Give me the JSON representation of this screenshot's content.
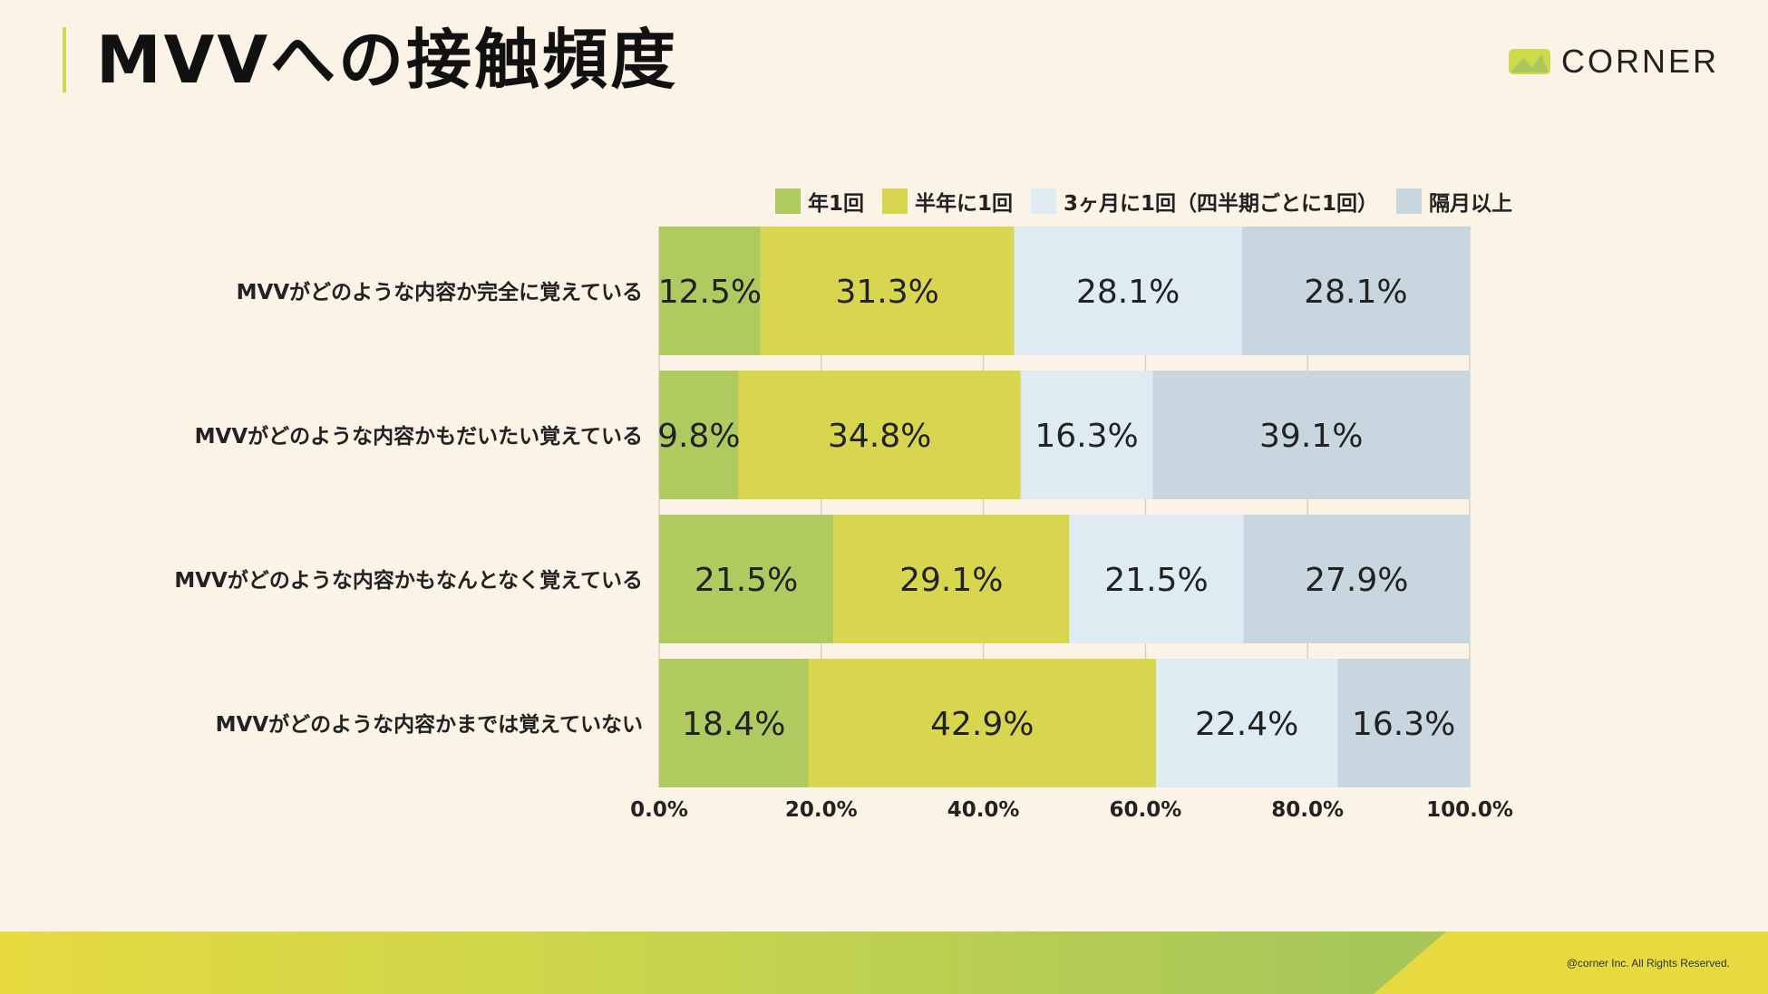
{
  "page": {
    "title": "MVVへの接触頻度",
    "logo_text": "CORNER",
    "copyright": "@corner Inc. All Rights Reserved."
  },
  "chart_data": {
    "type": "bar",
    "orientation": "horizontal",
    "stacked": true,
    "categories": [
      "MVVがどのような内容か完全に覚えている",
      "MVVがどのような内容かもだいたい覚えている",
      "MVVがどのような内容かもなんとなく覚えている",
      "MVVがどのような内容かまでは覚えていない"
    ],
    "series": [
      {
        "name": "年1回",
        "color": "#afcb5f",
        "values": [
          12.5,
          9.8,
          21.5,
          18.4
        ],
        "labels": [
          "12.5%",
          "9.8%",
          "21.5%",
          "18.4%"
        ]
      },
      {
        "name": "半年に1回",
        "color": "#d8d54f",
        "values": [
          31.3,
          34.8,
          29.1,
          42.9
        ],
        "labels": [
          "31.3%",
          "34.8%",
          "29.1%",
          "42.9%"
        ]
      },
      {
        "name": "3ヶ月に1回（四半期ごとに1回）",
        "color": "#deebf3",
        "values": [
          28.1,
          16.3,
          21.5,
          22.4
        ],
        "labels": [
          "28.1%",
          "16.3%",
          "21.5%",
          "22.4%"
        ]
      },
      {
        "name": "隔月以上",
        "color": "#c8d6df",
        "values": [
          28.1,
          39.1,
          27.9,
          16.3
        ],
        "labels": [
          "28.1%",
          "39.1%",
          "27.9%",
          "16.3%"
        ]
      }
    ],
    "xlim": [
      0,
      100
    ],
    "x_ticks": [
      0,
      20,
      40,
      60,
      80,
      100
    ],
    "x_tick_labels": [
      "0.0%",
      "20.0%",
      "40.0%",
      "60.0%",
      "80.0%",
      "100.0%"
    ],
    "grid": true,
    "legend": "top"
  }
}
